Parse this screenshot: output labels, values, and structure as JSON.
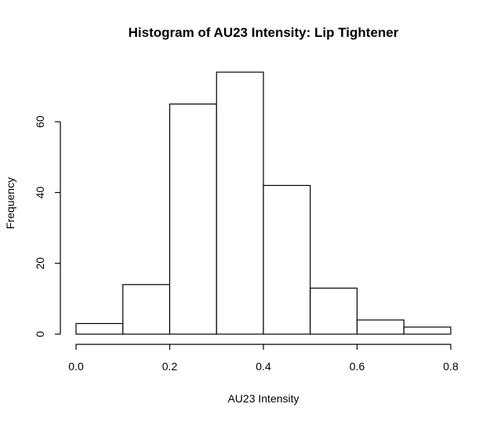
{
  "chart_data": {
    "type": "bar",
    "title": "Histogram of AU23 Intensity: Lip Tightener",
    "xlabel": "AU23 Intensity",
    "ylabel": "Frequency",
    "bins": [
      {
        "from": 0.0,
        "to": 0.1,
        "count": 3
      },
      {
        "from": 0.1,
        "to": 0.2,
        "count": 14
      },
      {
        "from": 0.2,
        "to": 0.3,
        "count": 65
      },
      {
        "from": 0.3,
        "to": 0.4,
        "count": 74
      },
      {
        "from": 0.4,
        "to": 0.5,
        "count": 42
      },
      {
        "from": 0.5,
        "to": 0.6,
        "count": 13
      },
      {
        "from": 0.6,
        "to": 0.7,
        "count": 4
      },
      {
        "from": 0.7,
        "to": 0.8,
        "count": 2
      }
    ],
    "xlim": [
      0,
      0.8
    ],
    "ylim": [
      0,
      74
    ],
    "x_ticks": [
      "0.0",
      "0.2",
      "0.4",
      "0.6",
      "0.8"
    ],
    "y_ticks": [
      "0",
      "20",
      "40",
      "60"
    ],
    "grid": false
  }
}
